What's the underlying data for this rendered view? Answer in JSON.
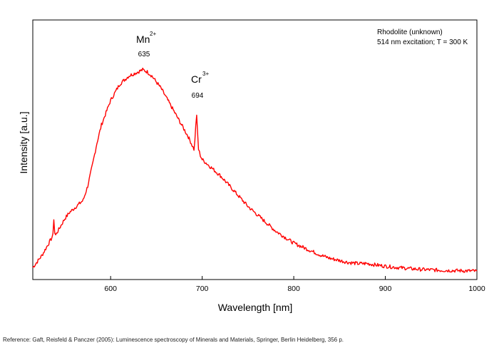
{
  "chart_data": {
    "type": "line",
    "title": "",
    "xlabel": "Wavelength [nm]",
    "ylabel": "Intensity [a.u.]",
    "xlim": [
      515,
      1000
    ],
    "ylim": [
      0,
      1.0
    ],
    "x_ticks": [
      600,
      700,
      800,
      900,
      1000
    ],
    "y_ticks_labeled": false,
    "grid": false,
    "legend": "none",
    "line_color": "#ff0000",
    "info_box": {
      "line1": "Rhodolite (unknown)",
      "line2": "514 nm excitation; T = 300 K",
      "placement": "top-right"
    },
    "annotations": [
      {
        "ion": "Mn",
        "charge": "2+",
        "value": "635",
        "x": 635,
        "y": 1.0
      },
      {
        "ion": "Cr",
        "charge": "3+",
        "value": "694",
        "x": 694,
        "y": 0.78
      }
    ],
    "series": [
      {
        "x": [
          515,
          520,
          525,
          530,
          535,
          537,
          538,
          539,
          540,
          545,
          550,
          555,
          560,
          565,
          570,
          575,
          580,
          585,
          590,
          595,
          600,
          605,
          610,
          615,
          620,
          625,
          630,
          635,
          640,
          645,
          650,
          655,
          660,
          665,
          670,
          675,
          680,
          685,
          688,
          690,
          691,
          692,
          693,
          694,
          695,
          696,
          698,
          700,
          705,
          710,
          720,
          730,
          740,
          750,
          760,
          770,
          780,
          790,
          800,
          810,
          820,
          830,
          840,
          850,
          860,
          870,
          880,
          890,
          900,
          910,
          920,
          930,
          940,
          950,
          960,
          970,
          980,
          990,
          1000
        ],
        "y": [
          0.02,
          0.05,
          0.08,
          0.12,
          0.16,
          0.18,
          0.26,
          0.19,
          0.18,
          0.22,
          0.26,
          0.29,
          0.31,
          0.33,
          0.35,
          0.42,
          0.52,
          0.63,
          0.72,
          0.78,
          0.84,
          0.88,
          0.92,
          0.94,
          0.96,
          0.97,
          0.98,
          0.99,
          0.98,
          0.96,
          0.93,
          0.9,
          0.86,
          0.82,
          0.78,
          0.74,
          0.7,
          0.66,
          0.63,
          0.61,
          0.6,
          0.64,
          0.72,
          0.76,
          0.68,
          0.6,
          0.57,
          0.55,
          0.53,
          0.51,
          0.47,
          0.42,
          0.37,
          0.32,
          0.28,
          0.24,
          0.2,
          0.17,
          0.14,
          0.12,
          0.1,
          0.08,
          0.065,
          0.055,
          0.045,
          0.04,
          0.04,
          0.033,
          0.027,
          0.022,
          0.018,
          0.014,
          0.011,
          0.009,
          0.007,
          0.006,
          0.005,
          0.004,
          0.003
        ]
      }
    ]
  },
  "reference": "Reference: Gaft, Reisfeld & Panczer (2005): Luminescence spectroscopy of Minerals and Materials, Springer, Berlin Heidelberg, 356 p."
}
